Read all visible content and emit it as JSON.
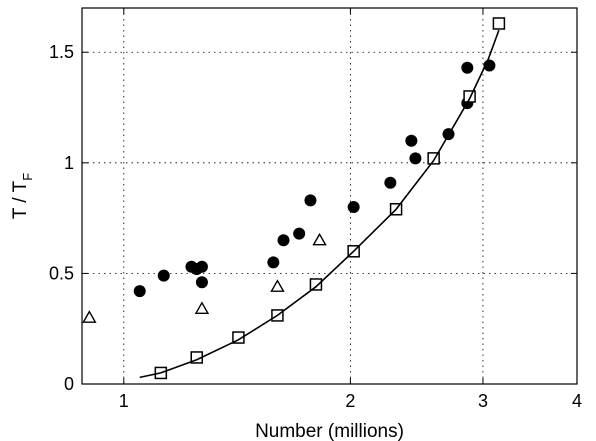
{
  "chart_data": {
    "type": "scatter",
    "title": "",
    "xlabel": "Number (millions)",
    "ylabel": {
      "main": "T / T",
      "subscript": "F"
    },
    "xscale": "log",
    "xlim": [
      0.88,
      4
    ],
    "ylim": [
      0,
      1.7
    ],
    "xticks": [
      {
        "value": 1,
        "label": "1"
      },
      {
        "value": 2,
        "label": "2"
      },
      {
        "value": 3,
        "label": "3"
      },
      {
        "value": 4,
        "label": "4"
      }
    ],
    "yticks": [
      {
        "value": 0,
        "label": "0"
      },
      {
        "value": 0.5,
        "label": "0.5"
      },
      {
        "value": 1,
        "label": "1"
      },
      {
        "value": 1.5,
        "label": "1.5"
      }
    ],
    "grid": true,
    "legend": "none",
    "series": [
      {
        "marker": "filled-circle",
        "points": [
          {
            "x": 1.05,
            "y": 0.42
          },
          {
            "x": 1.13,
            "y": 0.49
          },
          {
            "x": 1.23,
            "y": 0.53
          },
          {
            "x": 1.25,
            "y": 0.52
          },
          {
            "x": 1.27,
            "y": 0.53
          },
          {
            "x": 1.27,
            "y": 0.46
          },
          {
            "x": 1.58,
            "y": 0.55
          },
          {
            "x": 1.63,
            "y": 0.65
          },
          {
            "x": 1.71,
            "y": 0.68
          },
          {
            "x": 1.77,
            "y": 0.83
          },
          {
            "x": 2.02,
            "y": 0.8
          },
          {
            "x": 2.26,
            "y": 0.91
          },
          {
            "x": 2.41,
            "y": 1.1
          },
          {
            "x": 2.44,
            "y": 1.02
          },
          {
            "x": 2.7,
            "y": 1.13
          },
          {
            "x": 2.86,
            "y": 1.43
          },
          {
            "x": 2.86,
            "y": 1.27
          },
          {
            "x": 3.06,
            "y": 1.44
          }
        ]
      },
      {
        "marker": "open-triangle",
        "points": [
          {
            "x": 0.9,
            "y": 0.3
          },
          {
            "x": 1.27,
            "y": 0.34
          },
          {
            "x": 1.6,
            "y": 0.44
          },
          {
            "x": 1.82,
            "y": 0.65
          }
        ]
      },
      {
        "marker": "open-square",
        "points": [
          {
            "x": 1.12,
            "y": 0.05
          },
          {
            "x": 1.25,
            "y": 0.12
          },
          {
            "x": 1.42,
            "y": 0.21
          },
          {
            "x": 1.6,
            "y": 0.31
          },
          {
            "x": 1.8,
            "y": 0.45
          },
          {
            "x": 2.02,
            "y": 0.6
          },
          {
            "x": 2.3,
            "y": 0.79
          },
          {
            "x": 2.58,
            "y": 1.02
          },
          {
            "x": 2.88,
            "y": 1.3
          },
          {
            "x": 3.15,
            "y": 1.63
          }
        ]
      },
      {
        "marker": "line",
        "points": [
          {
            "x": 1.05,
            "y": 0.03
          },
          {
            "x": 1.12,
            "y": 0.05
          },
          {
            "x": 1.25,
            "y": 0.11
          },
          {
            "x": 1.42,
            "y": 0.2
          },
          {
            "x": 1.6,
            "y": 0.31
          },
          {
            "x": 1.8,
            "y": 0.44
          },
          {
            "x": 2.02,
            "y": 0.6
          },
          {
            "x": 2.3,
            "y": 0.79
          },
          {
            "x": 2.58,
            "y": 1.01
          },
          {
            "x": 2.88,
            "y": 1.29
          },
          {
            "x": 3.05,
            "y": 1.47
          },
          {
            "x": 3.15,
            "y": 1.6
          }
        ]
      }
    ]
  }
}
